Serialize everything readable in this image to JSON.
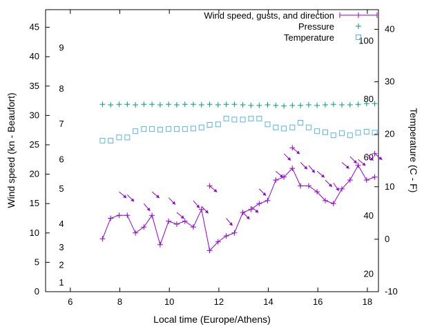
{
  "chart_data": {
    "type": "line",
    "title": "",
    "xlabel": "Local time (Europe/Athens)",
    "ylabel_left": "Wind speed (kn - Beaufort)",
    "ylabel_right": "Temperature (C - F)",
    "legend": [
      "Wind speed, gusts, and direction",
      "Pressure",
      "Temperature"
    ],
    "legend_position": "top-right-inside",
    "grid": false,
    "xlim": [
      5,
      18.45
    ],
    "x_ticks": [
      6,
      8,
      10,
      12,
      14,
      16,
      18
    ],
    "ylim_left_kn": [
      0,
      48
    ],
    "y_ticks_left_kn": [
      0,
      5,
      10,
      15,
      20,
      25,
      30,
      35,
      40,
      45
    ],
    "beaufort_labels": [
      {
        "b": "1",
        "kn": 1.5
      },
      {
        "b": "2",
        "kn": 4.5
      },
      {
        "b": "3",
        "kn": 7.5
      },
      {
        "b": "4",
        "kn": 11.5
      },
      {
        "b": "5",
        "kn": 17.5
      },
      {
        "b": "6",
        "kn": 22.5
      },
      {
        "b": "7",
        "kn": 28.5
      },
      {
        "b": "8",
        "kn": 34.5
      },
      {
        "b": "9",
        "kn": 41.5
      }
    ],
    "ylim_right_c": [
      -10,
      43.75
    ],
    "y_ticks_right_c": [
      -10,
      0,
      10,
      20,
      30,
      40
    ],
    "fahrenheit_labels": [
      20,
      40,
      60,
      80,
      100
    ],
    "series": {
      "wind_speed_kn": {
        "color": "#9400d3",
        "marker": "plus",
        "x": [
          7.3,
          7.63,
          7.97,
          8.3,
          8.63,
          8.97,
          9.3,
          9.63,
          9.97,
          10.3,
          10.63,
          10.97,
          11.3,
          11.63,
          11.97,
          12.3,
          12.63,
          12.97,
          13.3,
          13.63,
          13.97,
          14.3,
          14.63,
          14.97,
          15.3,
          15.63,
          15.97,
          16.3,
          16.63,
          16.97,
          17.3,
          17.63,
          17.97,
          18.3
        ],
        "y": [
          9,
          12.5,
          13,
          13,
          10,
          11,
          13,
          8,
          12,
          11.5,
          12,
          11,
          14,
          7,
          8.5,
          9.5,
          10,
          13.5,
          14,
          15,
          15.5,
          19,
          19.5,
          21,
          18,
          18,
          17,
          15.5,
          15,
          17.5,
          19,
          21.5,
          19,
          19.5
        ]
      },
      "wind_gusts_kn": {
        "color": "#9400d3",
        "marker": "direction-arrow",
        "x": [
          7.97,
          8.3,
          8.97,
          9.3,
          9.97,
          10.3,
          10.97,
          11.3,
          11.63,
          12.3,
          12.97,
          13.3,
          13.63,
          14.3,
          14.63,
          14.97,
          15.3,
          15.63,
          15.97,
          16.3,
          16.63,
          16.97,
          17.3,
          17.63,
          17.97,
          18.3
        ],
        "y": [
          17,
          16.5,
          15,
          17,
          16,
          13.5,
          15.5,
          14.5,
          18,
          12.5,
          13.5,
          14.5,
          17.5,
          20.5,
          23.5,
          24.5,
          22,
          21.5,
          20.5,
          19,
          18.5,
          22,
          23,
          22.5,
          23.5,
          23.5
        ],
        "dir_deg": [
          40,
          45,
          50,
          40,
          45,
          40,
          50,
          45,
          40,
          50,
          45,
          40,
          45,
          40,
          45,
          40,
          45,
          50,
          40,
          45,
          55,
          40,
          45,
          40,
          45,
          40
        ],
        "plus_marker": [
          0,
          0,
          0,
          0,
          0,
          0,
          0,
          0,
          1,
          0,
          0,
          0,
          0,
          0,
          0,
          1,
          0,
          0,
          0,
          0,
          0,
          0,
          0,
          0,
          0,
          1
        ]
      },
      "pressure_plotted_on_left_axis": {
        "color": "#009e73",
        "marker": "plus",
        "x": [
          7.3,
          7.63,
          7.97,
          8.3,
          8.63,
          8.97,
          9.3,
          9.63,
          9.97,
          10.3,
          10.63,
          10.97,
          11.3,
          11.63,
          11.97,
          12.3,
          12.63,
          12.97,
          13.3,
          13.63,
          13.97,
          14.3,
          14.63,
          14.97,
          15.3,
          15.63,
          15.97,
          16.3,
          16.63,
          16.97,
          17.3,
          17.63,
          17.97,
          18.3
        ],
        "y": [
          31.9,
          31.8,
          31.9,
          31.9,
          31.8,
          31.9,
          31.9,
          31.8,
          31.9,
          31.8,
          31.9,
          31.9,
          31.8,
          31.9,
          31.8,
          31.9,
          31.9,
          31.8,
          31.7,
          31.7,
          31.8,
          31.7,
          31.6,
          31.7,
          31.7,
          31.8,
          31.7,
          31.8,
          31.9,
          31.8,
          31.8,
          31.9,
          32.0,
          32.0
        ]
      },
      "temperature_c": {
        "color": "#56b4e9",
        "marker": "open-square",
        "x": [
          7.3,
          7.63,
          7.97,
          8.3,
          8.63,
          8.97,
          9.3,
          9.63,
          9.97,
          10.3,
          10.63,
          10.97,
          11.3,
          11.63,
          11.97,
          12.3,
          12.63,
          12.97,
          13.3,
          13.63,
          13.97,
          14.3,
          14.63,
          14.97,
          15.3,
          15.63,
          15.97,
          16.3,
          16.63,
          16.97,
          17.3,
          17.63,
          17.97,
          18.3
        ],
        "y": [
          18.8,
          18.8,
          19.4,
          19.4,
          20.6,
          21.0,
          21.0,
          20.9,
          21.0,
          21.0,
          21.0,
          21.1,
          21.3,
          21.8,
          21.9,
          23.0,
          22.8,
          22.8,
          23.0,
          23.0,
          21.9,
          21.3,
          21.1,
          21.3,
          22.2,
          21.3,
          20.6,
          20.4,
          19.8,
          20.2,
          19.8,
          20.3,
          20.5,
          20.3
        ]
      }
    }
  }
}
